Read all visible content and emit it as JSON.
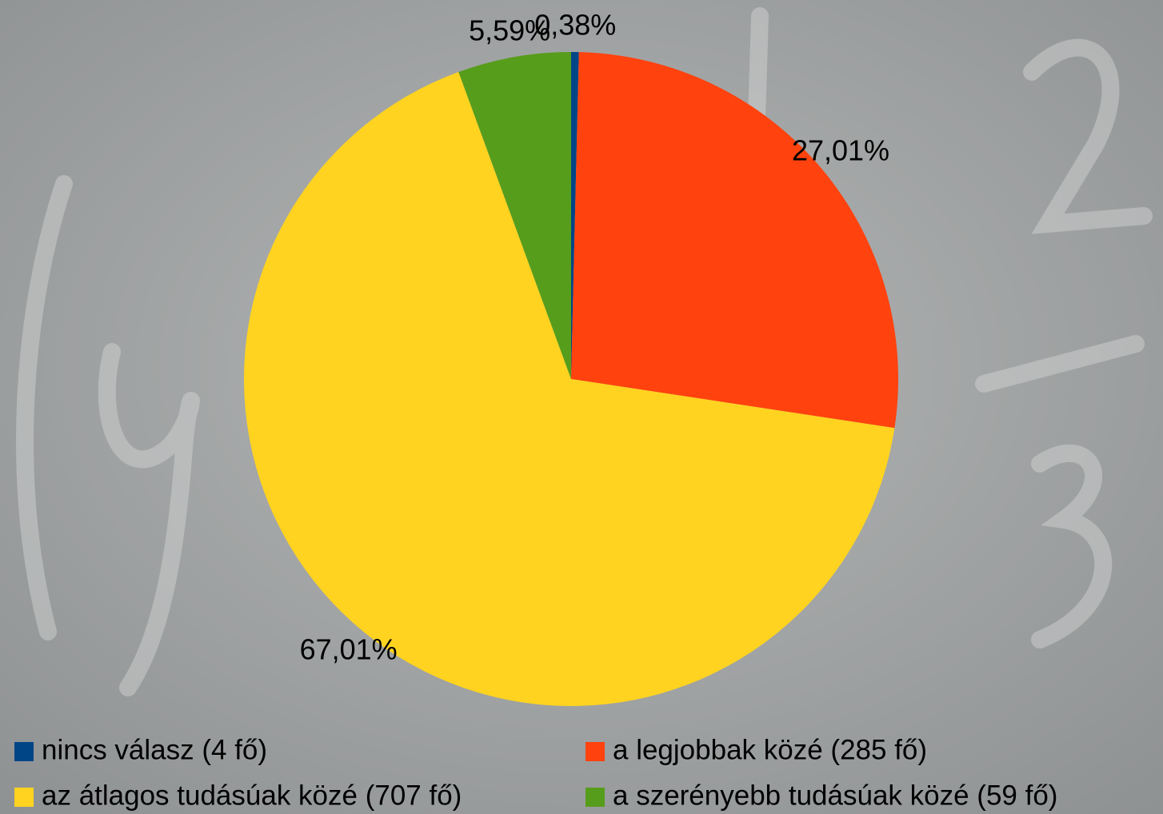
{
  "chart_data": {
    "type": "pie",
    "categories": [
      "nincs válasz (4 fő)",
      "a legjobbak közé (285 fő)",
      "az átlagos tudásúak közé (707 fő)",
      "a szerényebb tudásúak közé (59 fő)"
    ],
    "values": [
      0.38,
      27.01,
      67.01,
      5.59
    ],
    "value_labels": [
      "0,38%",
      "27,01%",
      "67,01%",
      "5,59%"
    ],
    "colors": [
      "#004586",
      "#ff420e",
      "#ffd320",
      "#579d1c"
    ]
  }
}
